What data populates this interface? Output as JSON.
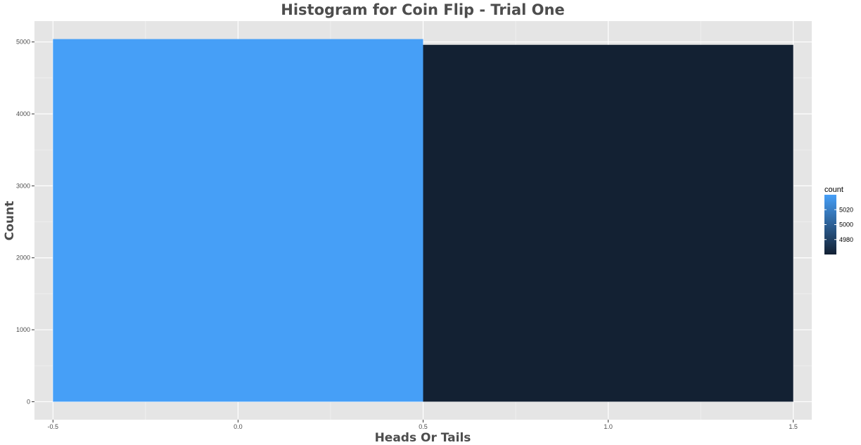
{
  "chart_data": {
    "type": "bar",
    "title": "Histogram for Coin Flip - Trial One",
    "xlabel": "Heads Or Tails",
    "ylabel": "Count",
    "xlim": [
      -0.55,
      1.55
    ],
    "ylim": [
      -250,
      5290
    ],
    "x_ticks": [
      -0.5,
      0.0,
      0.5,
      1.0,
      1.5
    ],
    "x_tick_labels": [
      "-0.5",
      "0.0",
      "0.5",
      "1.0",
      "1.5"
    ],
    "y_ticks": [
      0,
      1000,
      2000,
      3000,
      4000,
      5000
    ],
    "y_tick_labels": [
      "0",
      "1000",
      "2000",
      "3000",
      "4000",
      "5000"
    ],
    "bins": [
      {
        "x": 0,
        "xmin": -0.5,
        "xmax": 0.5,
        "count": 5040,
        "color": "#469ff7"
      },
      {
        "x": 1,
        "xmin": 0.5,
        "xmax": 1.5,
        "count": 4960,
        "color": "#132133"
      }
    ],
    "grid": true,
    "legend": {
      "title": "count",
      "placement": "right",
      "type": "colorbar",
      "range": [
        4960,
        5040
      ],
      "breaks": [
        4980,
        5000,
        5020
      ],
      "break_labels": [
        "4980",
        "5000",
        "5020"
      ],
      "color_low": "#132133",
      "color_high": "#469ff7"
    },
    "colors": {
      "panel_background": "#e5e5e5",
      "grid_major": "#ffffff",
      "text": "#4d4d4d"
    }
  }
}
